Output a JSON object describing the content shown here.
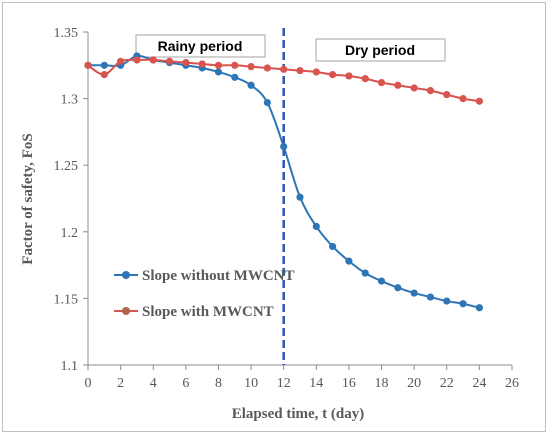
{
  "chart_data": {
    "type": "line",
    "title": "",
    "xlabel": "Elapsed time, t (day)",
    "ylabel": "Factor of safety, FoS",
    "xlim": [
      0,
      26
    ],
    "ylim": [
      1.1,
      1.35
    ],
    "x_ticks": [
      "0",
      "2",
      "4",
      "6",
      "8",
      "10",
      "12",
      "14",
      "16",
      "18",
      "20",
      "22",
      "24",
      "26"
    ],
    "y_ticks": [
      "1.1",
      "1.15",
      "1.2",
      "1.25",
      "1.3",
      "1.35"
    ],
    "grid": false,
    "legend_position": "left-bottom",
    "annotations": {
      "rainy": "Rainy period",
      "dry": "Dry period",
      "divider_x": 12
    },
    "series": [
      {
        "name": "Slope without MWCNT",
        "color": "#2e75b6",
        "x": [
          0,
          1,
          2,
          3,
          4,
          5,
          6,
          7,
          8,
          9,
          10,
          11,
          12,
          13,
          14,
          15,
          16,
          17,
          18,
          19,
          20,
          21,
          22,
          23,
          24
        ],
        "values": [
          1.325,
          1.325,
          1.325,
          1.332,
          1.329,
          1.327,
          1.325,
          1.323,
          1.32,
          1.316,
          1.31,
          1.297,
          1.264,
          1.226,
          1.204,
          1.189,
          1.178,
          1.169,
          1.163,
          1.158,
          1.154,
          1.151,
          1.148,
          1.146,
          1.143
        ]
      },
      {
        "name": "Slope with MWCNT",
        "color": "#d9534f",
        "x": [
          0,
          1,
          2,
          3,
          4,
          5,
          6,
          7,
          8,
          9,
          10,
          11,
          12,
          13,
          14,
          15,
          16,
          17,
          18,
          19,
          20,
          21,
          22,
          23,
          24
        ],
        "values": [
          1.325,
          1.318,
          1.328,
          1.329,
          1.329,
          1.328,
          1.327,
          1.326,
          1.325,
          1.325,
          1.324,
          1.323,
          1.322,
          1.321,
          1.32,
          1.318,
          1.317,
          1.315,
          1.312,
          1.31,
          1.308,
          1.306,
          1.303,
          1.3,
          1.298
        ]
      }
    ]
  }
}
